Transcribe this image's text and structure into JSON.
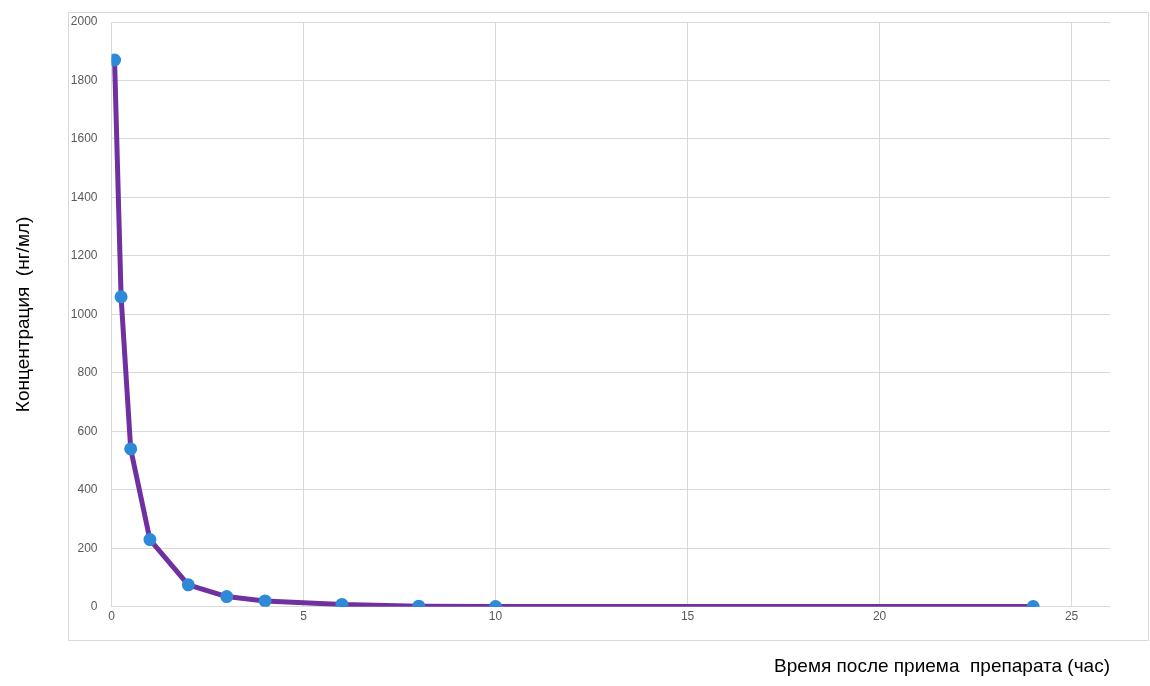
{
  "chart_data": {
    "type": "line",
    "xlabel": "Время после приема  препарата (час)",
    "ylabel": "Концентрация  (нг/мл)",
    "x": [
      0.08,
      0.25,
      0.5,
      1,
      2,
      3,
      4,
      6,
      8,
      10,
      24
    ],
    "series": [
      {
        "color": "#7030a0",
        "values": [
          1870,
          1060,
          540,
          230,
          75,
          35,
          20,
          8,
          2,
          1,
          1
        ]
      }
    ],
    "xlim": [
      0,
      26
    ],
    "xticks": [
      0,
      5,
      10,
      15,
      20,
      25
    ],
    "ylim": [
      0,
      2000
    ],
    "yticks": [
      0,
      200,
      400,
      600,
      800,
      1000,
      1200,
      1400,
      1600,
      1800,
      2000
    ],
    "grid": true,
    "legend": false,
    "marker": "circle",
    "line_style": "solid"
  }
}
